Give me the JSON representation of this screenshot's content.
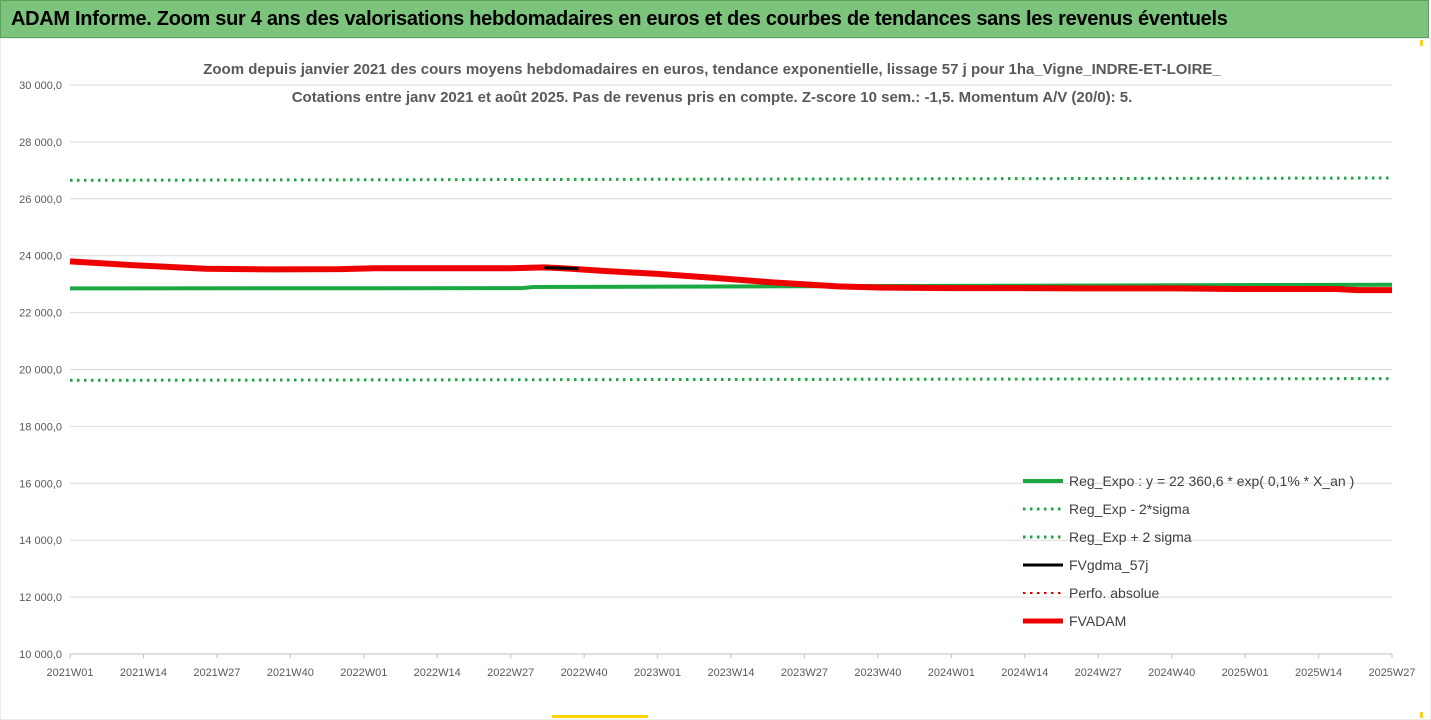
{
  "header": {
    "title": "ADAM Informe. Zoom sur 4 ans des valorisations hebdomadaires en euros et des courbes de tendances sans les revenus éventuels"
  },
  "chart_data": {
    "type": "line",
    "title": "Zoom depuis janvier 2021 des cours moyens hebdomadaires en euros, tendance exponentielle, lissage 57 j pour 1ha_Vigne_INDRE-ET-LOIRE_",
    "subtitle": "Cotations entre janv 2021 et août 2025. Pas de revenus pris en compte. Z-score 10 sem.: -1,5. Momentum A/V (20/0): 5.",
    "xlabel": "",
    "ylabel": "",
    "ylim": [
      10000,
      30000
    ],
    "yticks": [
      "10 000,0",
      "12 000,0",
      "14 000,0",
      "16 000,0",
      "18 000,0",
      "20 000,0",
      "22 000,0",
      "24 000,0",
      "26 000,0",
      "28 000,0",
      "30 000,0"
    ],
    "ytick_values": [
      10000,
      12000,
      14000,
      16000,
      18000,
      20000,
      22000,
      24000,
      26000,
      28000,
      30000
    ],
    "xticks": [
      "2021W01",
      "2021W14",
      "2021W27",
      "2021W40",
      "2022W01",
      "2022W14",
      "2022W27",
      "2022W40",
      "2023W01",
      "2023W14",
      "2023W27",
      "2023W40",
      "2024W01",
      "2024W14",
      "2024W27",
      "2024W40",
      "2025W01",
      "2025W14",
      "2025W27"
    ],
    "x_week_index_range": [
      0,
      234
    ],
    "grid": "horizontal",
    "legend_position": "bottom-right",
    "series": [
      {
        "name": "Reg_Expo : y = 22 360,6 * exp( 0,1% *  X_an )",
        "color": "#1aa843",
        "style": "solid",
        "width": 4,
        "x": [
          0,
          80,
          82,
          234
        ],
        "values": [
          22850,
          22860,
          22900,
          22980
        ]
      },
      {
        "name": "Reg_Exp - 2*sigma",
        "color": "#1aa843",
        "style": "dotted",
        "width": 3,
        "x": [
          0,
          234
        ],
        "values": [
          19620,
          19680
        ]
      },
      {
        "name": "Reg_Exp + 2 sigma",
        "color": "#1aa843",
        "style": "dotted",
        "width": 3,
        "x": [
          0,
          234
        ],
        "values": [
          26650,
          26730
        ]
      },
      {
        "name": "FVgdma_57j",
        "color": "#000000",
        "style": "solid",
        "width": 3,
        "x": [
          84,
          88,
          90
        ],
        "values": [
          23580,
          23560,
          23540
        ]
      },
      {
        "name": "Perfo. absolue",
        "color": "#e00000",
        "style": "dotted",
        "width": 2,
        "x": [],
        "values": []
      },
      {
        "name": "FVADAM",
        "color": "#ee0000",
        "style": "solid",
        "width": 6,
        "x": [
          0,
          4,
          10,
          16,
          24,
          36,
          48,
          54,
          66,
          78,
          84,
          88,
          94,
          104,
          114,
          124,
          136,
          144,
          156,
          166,
          180,
          196,
          206,
          224,
          228,
          234
        ],
        "values": [
          23800,
          23750,
          23680,
          23620,
          23540,
          23520,
          23530,
          23560,
          23560,
          23560,
          23590,
          23550,
          23470,
          23360,
          23220,
          23070,
          22920,
          22880,
          22860,
          22860,
          22850,
          22850,
          22830,
          22830,
          22790,
          22790
        ]
      }
    ]
  }
}
